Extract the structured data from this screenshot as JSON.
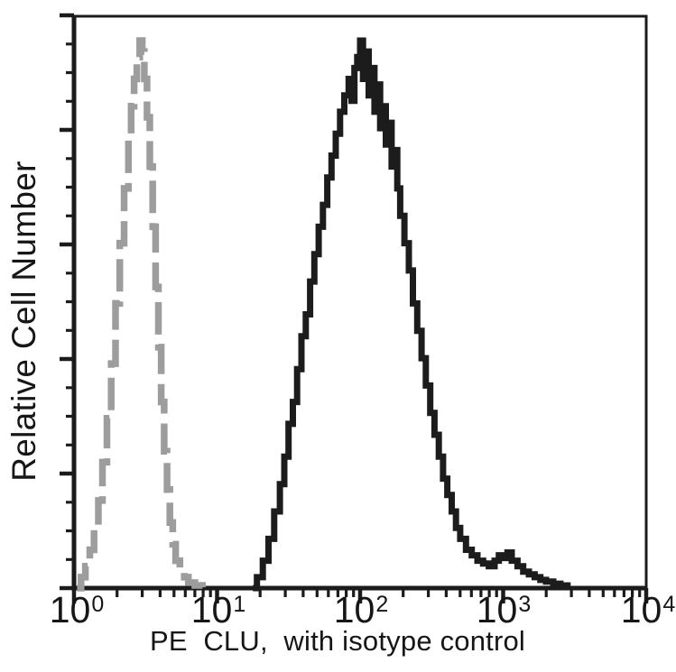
{
  "colors": {
    "background": "#ffffff",
    "axis": "#1b1b1b",
    "text": "#161616",
    "isotype_gray": "#9d9d9d",
    "pe_clu_black": "#1c1c1c"
  },
  "chart_data": {
    "type": "line",
    "chart_kind": "flow-cytometry-histogram-overlay",
    "title": "",
    "xlabel": "PE  CLU,  with isotype control",
    "ylabel": "Relative Cell Number",
    "x_scale": "log10",
    "x_range": [
      1,
      10000
    ],
    "y_range_percent": [
      0,
      100
    ],
    "grid": false,
    "legend": "none",
    "x_ticks": [
      {
        "base": "10",
        "exp": "0"
      },
      {
        "base": "10",
        "exp": "1"
      },
      {
        "base": "10",
        "exp": "2"
      },
      {
        "base": "10",
        "exp": "3"
      },
      {
        "base": "10",
        "exp": "4"
      }
    ],
    "y_axis": {
      "tick_labels_visible": false,
      "major_tick_count": 6,
      "minor_ticks_per_interval": 3
    },
    "series": [
      {
        "name": "isotype control",
        "line_style": "dashed",
        "color": "#9d9d9d",
        "peak_x": 2.9,
        "points": [
          [
            1.05,
            0
          ],
          [
            1.12,
            2
          ],
          [
            1.2,
            4
          ],
          [
            1.29,
            7
          ],
          [
            1.38,
            11
          ],
          [
            1.48,
            16
          ],
          [
            1.58,
            23
          ],
          [
            1.7,
            31
          ],
          [
            1.82,
            41
          ],
          [
            1.95,
            52
          ],
          [
            2.09,
            63
          ],
          [
            2.24,
            73
          ],
          [
            2.4,
            82
          ],
          [
            2.51,
            88
          ],
          [
            2.63,
            93
          ],
          [
            2.75,
            97
          ],
          [
            2.88,
            100
          ],
          [
            3.0,
            98
          ],
          [
            3.1,
            93
          ],
          [
            3.24,
            86
          ],
          [
            3.39,
            77
          ],
          [
            3.55,
            66
          ],
          [
            3.72,
            55
          ],
          [
            3.89,
            44
          ],
          [
            4.07,
            34
          ],
          [
            4.27,
            25
          ],
          [
            4.47,
            18
          ],
          [
            4.68,
            12
          ],
          [
            4.9,
            8
          ],
          [
            5.13,
            5
          ],
          [
            5.5,
            3
          ],
          [
            5.9,
            2
          ],
          [
            6.3,
            1
          ],
          [
            7.0,
            0.5
          ],
          [
            7.9,
            0
          ]
        ]
      },
      {
        "name": "PE CLU",
        "line_style": "solid",
        "color": "#1c1c1c",
        "peak_x": 100,
        "points": [
          [
            17.8,
            0
          ],
          [
            19,
            2
          ],
          [
            20.9,
            5
          ],
          [
            22.9,
            9
          ],
          [
            25.1,
            14
          ],
          [
            27.5,
            19
          ],
          [
            29.5,
            24
          ],
          [
            31.6,
            30
          ],
          [
            33.9,
            34
          ],
          [
            36.3,
            40
          ],
          [
            38.9,
            46
          ],
          [
            41.7,
            50
          ],
          [
            44.7,
            56
          ],
          [
            47.9,
            61
          ],
          [
            51.3,
            66
          ],
          [
            55,
            70
          ],
          [
            58.9,
            75
          ],
          [
            63.1,
            79
          ],
          [
            67.6,
            83
          ],
          [
            72.4,
            87
          ],
          [
            77.6,
            90
          ],
          [
            83.2,
            93
          ],
          [
            87.1,
            89
          ],
          [
            91.2,
            95
          ],
          [
            95.5,
            97
          ],
          [
            100,
            100
          ],
          [
            104.7,
            93
          ],
          [
            109.6,
            98
          ],
          [
            114.8,
            90
          ],
          [
            120.2,
            95
          ],
          [
            125.9,
            87
          ],
          [
            131.8,
            92
          ],
          [
            138,
            84
          ],
          [
            144.5,
            88
          ],
          [
            151.4,
            81
          ],
          [
            158.5,
            85
          ],
          [
            166,
            77
          ],
          [
            173.8,
            80
          ],
          [
            182,
            73
          ],
          [
            190.5,
            68
          ],
          [
            204,
            63
          ],
          [
            219,
            58
          ],
          [
            234,
            52
          ],
          [
            251,
            47
          ],
          [
            269,
            42
          ],
          [
            288,
            37
          ],
          [
            309,
            32
          ],
          [
            331,
            28
          ],
          [
            355,
            24
          ],
          [
            380,
            20
          ],
          [
            407,
            17
          ],
          [
            437,
            14
          ],
          [
            468,
            11
          ],
          [
            501,
            9
          ],
          [
            550,
            7
          ],
          [
            603,
            6
          ],
          [
            661,
            5
          ],
          [
            724,
            4.5
          ],
          [
            794,
            4
          ],
          [
            871,
            5
          ],
          [
            933,
            6
          ],
          [
            1000,
            5.5
          ],
          [
            1072,
            6.5
          ],
          [
            1148,
            5
          ],
          [
            1259,
            4
          ],
          [
            1380,
            3
          ],
          [
            1514,
            2.5
          ],
          [
            1660,
            2
          ],
          [
            1820,
            1.5
          ],
          [
            1995,
            1.2
          ],
          [
            2239,
            0.8
          ],
          [
            2512,
            0.5
          ],
          [
            2818,
            0
          ]
        ]
      }
    ]
  }
}
